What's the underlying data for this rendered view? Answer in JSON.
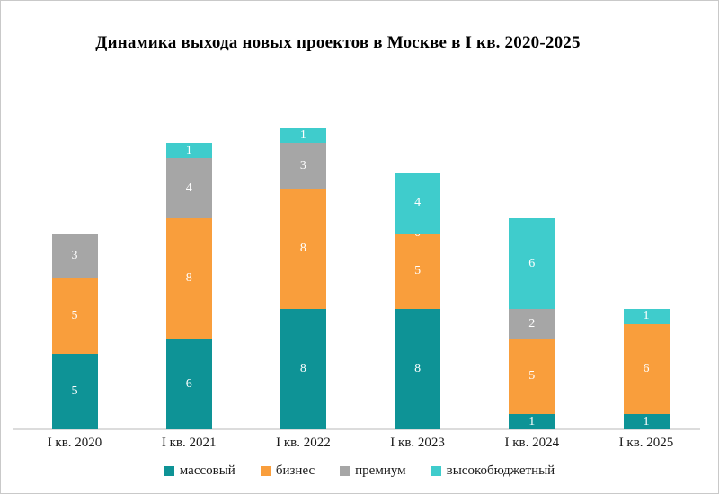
{
  "title": "Динамика выхода новых проектов в Москве в I кв. 2020-2025",
  "chart_data": {
    "type": "bar",
    "stacked": true,
    "title": "Динамика выхода новых проектов в Москве в I кв. 2020-2025",
    "categories": [
      "I кв. 2020",
      "I кв. 2021",
      "I кв. 2022",
      "I кв. 2023",
      "I кв. 2024",
      "I кв. 2025"
    ],
    "series": [
      {
        "name": "массовый",
        "color": "#0E9396",
        "values": [
          5,
          6,
          8,
          8,
          1,
          1
        ],
        "labels": [
          "5",
          "6",
          "8",
          "8",
          "1",
          "1"
        ]
      },
      {
        "name": "бизнес",
        "color": "#F99E3C",
        "values": [
          5,
          8,
          8,
          5,
          5,
          6
        ],
        "labels": [
          "5",
          "8",
          "8",
          "5",
          "5",
          "6"
        ]
      },
      {
        "name": "премиум",
        "color": "#A6A6A6",
        "values": [
          3,
          4,
          3,
          0,
          2,
          0
        ],
        "labels": [
          "3",
          "4",
          "3",
          "0",
          "2",
          ""
        ]
      },
      {
        "name": "высокобюджетный",
        "color": "#3FCCCC",
        "values": [
          0,
          1,
          1,
          4,
          6,
          1
        ],
        "labels": [
          "",
          "1",
          "1",
          "4",
          "6",
          "1"
        ]
      }
    ],
    "totals": [
      13,
      19,
      20,
      17,
      14,
      8
    ],
    "xlabel": "",
    "ylabel": "",
    "ylim": [
      0,
      20
    ],
    "grid": false,
    "y_axis_visible": false,
    "legend_position": "bottom",
    "data_label_color": "#FFFFFF",
    "axis_line_color": "#DCDCDC"
  }
}
